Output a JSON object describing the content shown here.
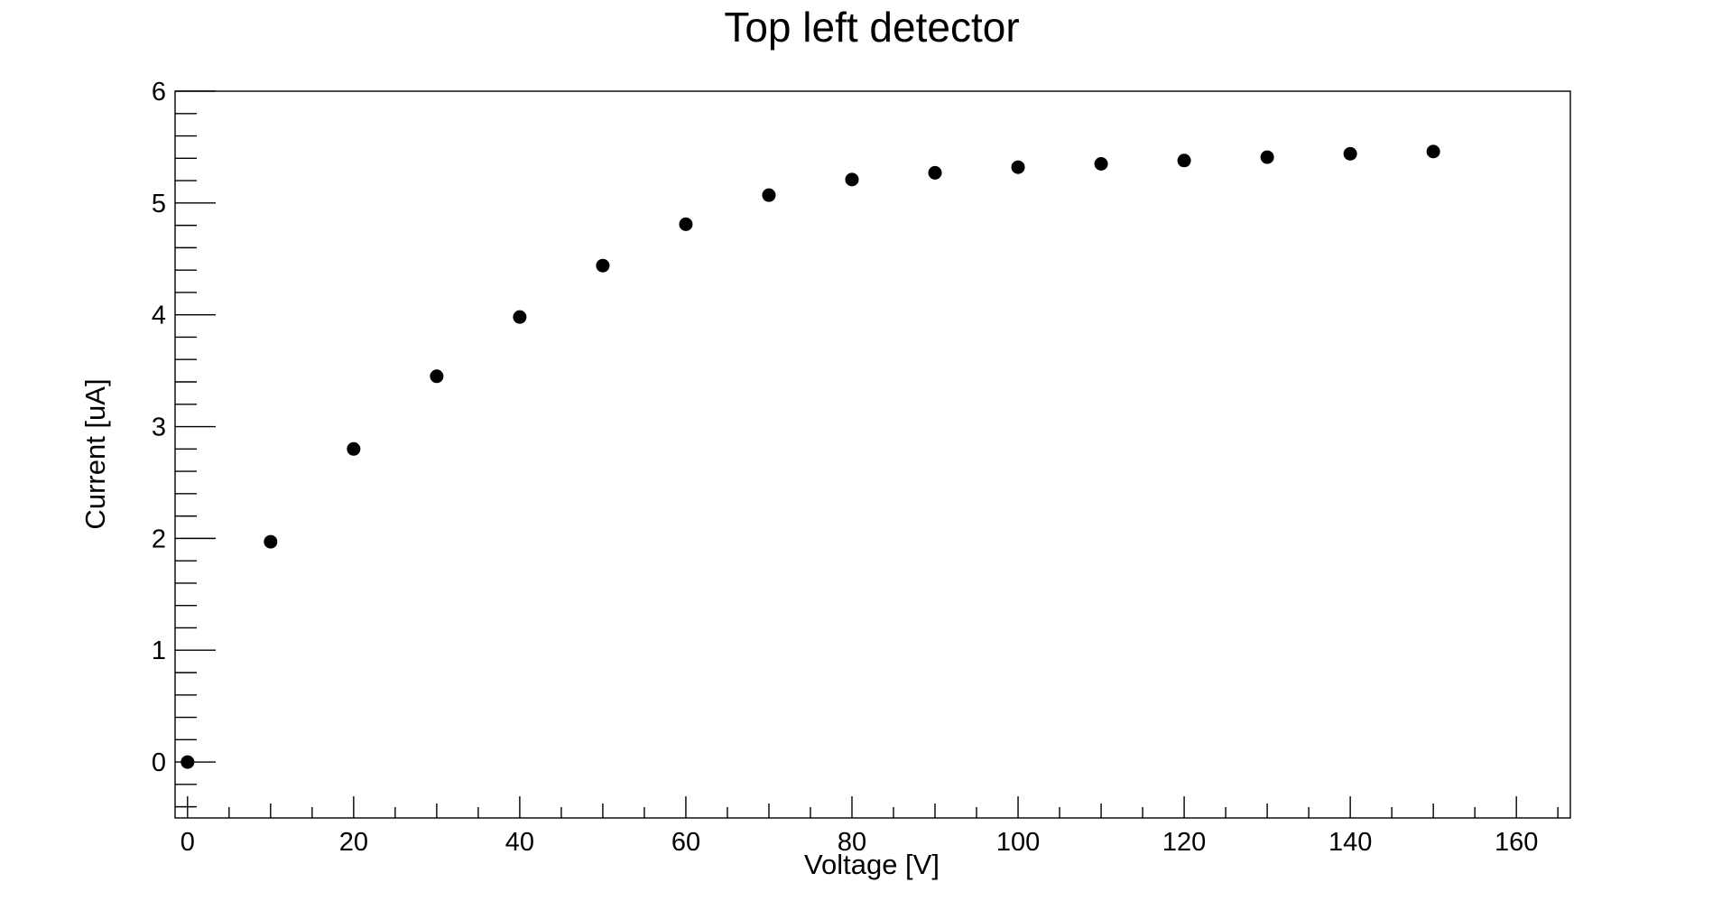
{
  "chart_data": {
    "type": "scatter",
    "title": "Top left detector",
    "xlabel": "Voltage [V]",
    "ylabel": "Current [uA]",
    "xlim": [
      -1.5,
      166.5
    ],
    "ylim": [
      -0.5,
      6
    ],
    "x_ticks": [
      0,
      20,
      40,
      60,
      80,
      100,
      120,
      140,
      160
    ],
    "y_ticks": [
      0,
      1,
      2,
      3,
      4,
      5,
      6
    ],
    "x_tick_labels": [
      "0",
      "20",
      "40",
      "60",
      "80",
      "100",
      "120",
      "140",
      "160"
    ],
    "y_tick_labels": [
      "0",
      "1",
      "2",
      "3",
      "4",
      "5",
      "6"
    ],
    "grid": false,
    "legend": "none",
    "marker_color": "#000000",
    "series": [
      {
        "x": [
          0,
          10,
          20,
          30,
          40,
          50,
          60,
          70,
          80,
          90,
          100,
          110,
          120,
          130,
          140,
          150
        ],
        "y": [
          0.0,
          1.97,
          2.8,
          3.45,
          3.98,
          4.44,
          4.81,
          5.07,
          5.21,
          5.27,
          5.32,
          5.35,
          5.38,
          5.41,
          5.44,
          5.46
        ]
      }
    ]
  }
}
